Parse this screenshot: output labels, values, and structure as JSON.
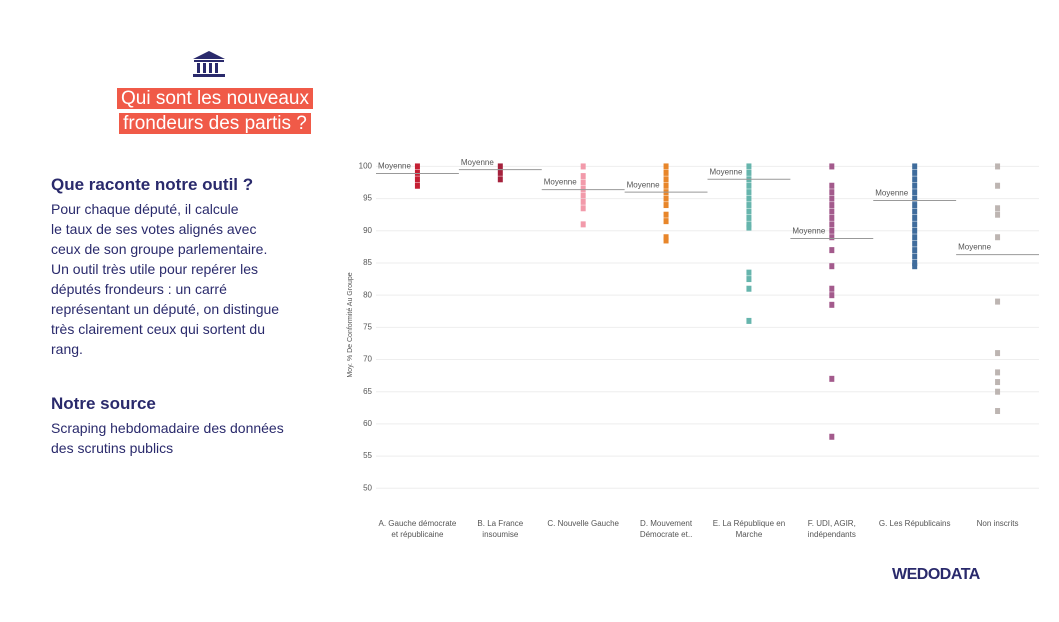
{
  "header": {
    "title_lines": [
      "Qui sont les  nouveaux",
      "frondeurs des partis ?"
    ]
  },
  "sections": [
    {
      "heading": "Que raconte notre outil ?",
      "lines": [
        "Pour chaque député, il calcule",
        "le taux de ses votes alignés avec",
        "ceux de son groupe parlementaire.",
        "Un outil très utile pour repérer les",
        "députés frondeurs : un carré",
        "représentant un député, on distingue",
        "très clairement ceux qui sortent du",
        "rang."
      ]
    },
    {
      "heading": "Notre source",
      "lines": [
        "Scraping hebdomadaire des données",
        "des scrutins publics"
      ]
    }
  ],
  "brand": "WEDODATA",
  "chart_data": {
    "type": "strip",
    "y_label": "Moy. % De Conformité Au Groupe",
    "mean_label": "Moyenne",
    "categories": [
      "A. Gauche démocrate et républicaine",
      "B. La France insoumise",
      "C. Nouvelle Gauche",
      "D. Mouvement Démocrate et..",
      "E. La République en Marche",
      "F. UDI, AGIR, indépendants",
      "G. Les Républicains",
      "Non inscrits"
    ],
    "colors": [
      "#c41f33",
      "#a5213c",
      "#f29aaa",
      "#e8862a",
      "#66b5ad",
      "#a35a8c",
      "#3f6c9c",
      "#bdb5b2"
    ],
    "points": [
      [
        100,
        99,
        98,
        97
      ],
      [
        100,
        99,
        98
      ],
      [
        100,
        98.5,
        97.5,
        96.5,
        95.5,
        94.5,
        93.5,
        91
      ],
      [
        100,
        99,
        98,
        97,
        96,
        95,
        94,
        92.5,
        91.5,
        89,
        88.5
      ],
      [
        100,
        99,
        98,
        97,
        96,
        95,
        94,
        93,
        92,
        91,
        90.5,
        83.5,
        82.5,
        81,
        76
      ],
      [
        100,
        97,
        96,
        95,
        94,
        93,
        92,
        91,
        90,
        89,
        87,
        84.5,
        81,
        80,
        78.5,
        67,
        58
      ],
      [
        100,
        99,
        98,
        97,
        96,
        95,
        94,
        93,
        92,
        91,
        90,
        89,
        88,
        87,
        86,
        85,
        84.5
      ],
      [
        100,
        97,
        93.5,
        92.5,
        89,
        79,
        71,
        68,
        66.5,
        65,
        62
      ]
    ],
    "means": [
      98.9,
      99.5,
      96.4,
      96,
      98,
      88.8,
      94.7,
      86.3
    ],
    "ylim": [
      46,
      101
    ],
    "yticks": [
      50,
      55,
      60,
      65,
      70,
      75,
      80,
      85,
      90,
      95,
      100
    ],
    "grid": true
  }
}
